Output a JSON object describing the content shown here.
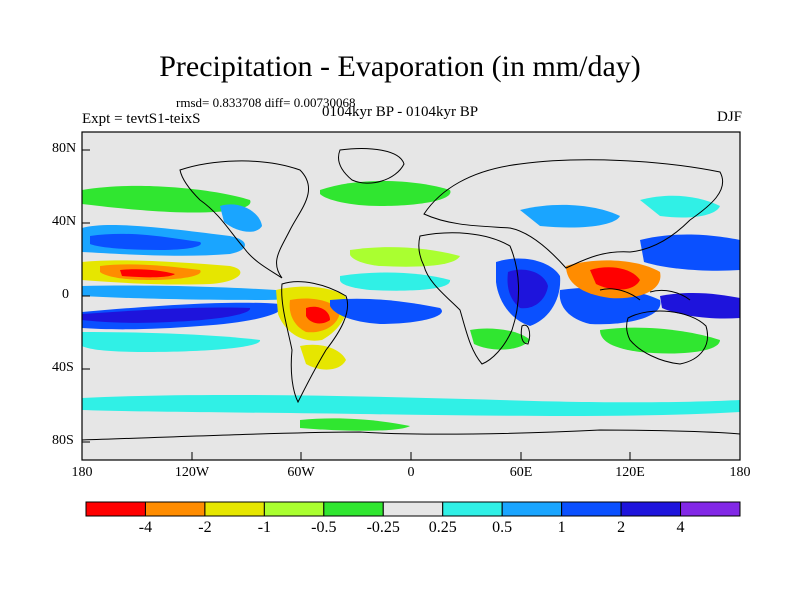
{
  "title": "Precipitation - Evaporation (in mm/day)",
  "stats": "rmsd= 0.833708 diff= 0.00730068",
  "expt": "Expt = tevtS1-teixS",
  "period": "0104kyr BP - 0104kyr BP",
  "season": "DJF",
  "lat_labels": [
    "80N",
    "40N",
    "0",
    "40S",
    "80S"
  ],
  "lon_labels": [
    "180",
    "120W",
    "60W",
    "0",
    "60E",
    "120E",
    "180"
  ],
  "colorbar": {
    "colors": [
      "#ff0000",
      "#ff8c00",
      "#e6e600",
      "#aaff30",
      "#30e630",
      "#e6e6e6",
      "#30f0e6",
      "#1aa5ff",
      "#0a50ff",
      "#1e14dc",
      "#8228e6"
    ],
    "labels": [
      "-4",
      "-2",
      "-1",
      "-0.5",
      "-0.25",
      "0.25",
      "0.5",
      "1",
      "2",
      "4"
    ]
  },
  "colors": {
    "ocean_neutral": "#e6e6e6",
    "coast": "#000000"
  }
}
